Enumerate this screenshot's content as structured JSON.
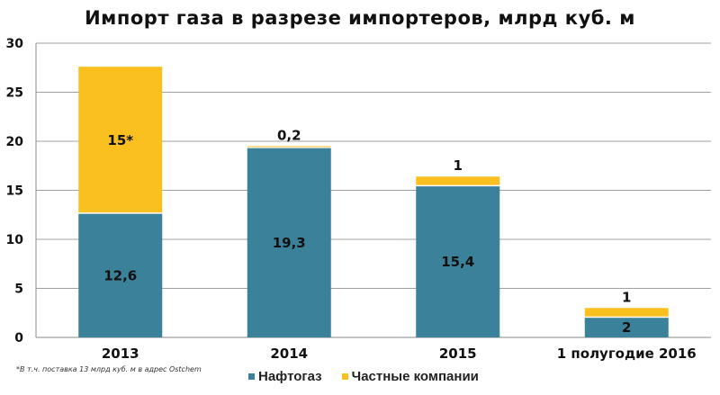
{
  "chart_data": {
    "type": "bar",
    "stacked": true,
    "title": "Импорт газа в разрезе импортеров, млрд куб. м",
    "categories": [
      "2013",
      "2014",
      "2015",
      "1 полугодие 2016"
    ],
    "series": [
      {
        "name": "Нафтогаз",
        "color": "#3A8199",
        "values": [
          12.6,
          19.3,
          15.4,
          2
        ],
        "labels": [
          "12,6",
          "19,3",
          "15,4",
          "2"
        ]
      },
      {
        "name": "Частные компании",
        "color": "#F9C01F",
        "values": [
          15,
          0.2,
          1,
          1
        ],
        "labels": [
          "15*",
          "0,2",
          "1",
          "1"
        ]
      }
    ],
    "ylim": [
      0,
      30
    ],
    "yticks": [
      0,
      5,
      10,
      15,
      20,
      25,
      30
    ],
    "grid": true,
    "legend": "bottom",
    "footnote": "*В т.ч. поставка  13 млрд куб. м в адрес Ostchem"
  }
}
